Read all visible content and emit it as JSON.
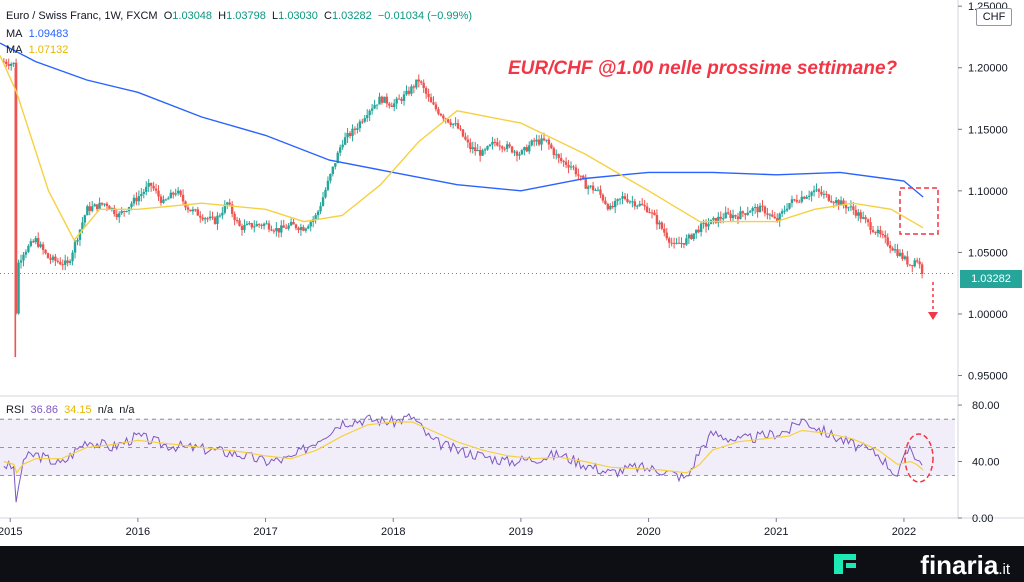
{
  "header": {
    "symbol": "Euro / Swiss Franc, 1W, FXCM",
    "o_label": "O",
    "o_value": "1.03048",
    "h_label": "H",
    "h_value": "1.03798",
    "l_label": "L",
    "l_value": "1.03030",
    "c_label": "C",
    "c_value": "1.03282",
    "change": "−0.01034 (−0.99%)",
    "ma1_label": "MA",
    "ma1_value": "1.09483",
    "ma2_label": "MA",
    "ma2_value": "1.07132",
    "currency": "CHF"
  },
  "annotation": "EUR/CHF @1.00 nelle prossime settimane?",
  "last_price_label": "1.03282",
  "rsi_legend": {
    "label": "RSI",
    "value1": "36.86",
    "value2": "34.15",
    "na1": "n/a",
    "na2": "n/a"
  },
  "brand": {
    "name": "finaria",
    "tld": ".it"
  },
  "colors": {
    "up": "#26a69a",
    "down": "#ef5350",
    "ma1": "#2962ff",
    "ma2": "#f5d142",
    "rsi": "#7e57c2",
    "rsi_ma": "#f5d142",
    "annotation": "#f23645"
  },
  "chart_data": {
    "type": "candlestick",
    "price_axis": {
      "ylim": [
        0.935,
        1.255
      ],
      "ticks": [
        "1.25000",
        "1.20000",
        "1.15000",
        "1.10000",
        "1.05000",
        "1.00000",
        "0.95000"
      ],
      "tick_values": [
        1.25,
        1.2,
        1.15,
        1.1,
        1.05,
        1.0,
        0.95
      ]
    },
    "x_axis": {
      "range": [
        2014.92,
        2022.4
      ],
      "ticks": [
        "2015",
        "2016",
        "2017",
        "2018",
        "2019",
        "2020",
        "2021",
        "2022"
      ],
      "tick_values": [
        2015,
        2016,
        2017,
        2018,
        2019,
        2020,
        2021,
        2022
      ]
    },
    "close_series": {
      "name": "EUR/CHF",
      "x": [
        2014.95,
        2015.03,
        2015.04,
        2015.06,
        2015.1,
        2015.2,
        2015.3,
        2015.45,
        2015.6,
        2015.75,
        2015.85,
        2016.0,
        2016.1,
        2016.2,
        2016.3,
        2016.4,
        2016.5,
        2016.6,
        2016.7,
        2016.8,
        2016.9,
        2017.0,
        2017.1,
        2017.2,
        2017.3,
        2017.4,
        2017.5,
        2017.6,
        2017.7,
        2017.8,
        2017.9,
        2018.0,
        2018.1,
        2018.2,
        2018.3,
        2018.4,
        2018.5,
        2018.6,
        2018.7,
        2018.8,
        2018.9,
        2019.0,
        2019.1,
        2019.2,
        2019.3,
        2019.4,
        2019.5,
        2019.6,
        2019.7,
        2019.8,
        2019.9,
        2020.0,
        2020.1,
        2020.2,
        2020.3,
        2020.4,
        2020.5,
        2020.6,
        2020.7,
        2020.8,
        2020.9,
        2021.0,
        2021.1,
        2021.2,
        2021.3,
        2021.4,
        2021.5,
        2021.6,
        2021.7,
        2021.8,
        2021.9,
        2022.0,
        2022.05,
        2022.1,
        2022.15
      ],
      "y": [
        1.205,
        1.203,
        0.985,
        1.04,
        1.05,
        1.06,
        1.045,
        1.04,
        1.085,
        1.09,
        1.08,
        1.095,
        1.105,
        1.09,
        1.1,
        1.085,
        1.08,
        1.075,
        1.09,
        1.07,
        1.072,
        1.073,
        1.068,
        1.072,
        1.07,
        1.08,
        1.11,
        1.14,
        1.15,
        1.165,
        1.175,
        1.17,
        1.178,
        1.19,
        1.17,
        1.16,
        1.152,
        1.135,
        1.13,
        1.14,
        1.135,
        1.13,
        1.14,
        1.14,
        1.125,
        1.12,
        1.105,
        1.1,
        1.085,
        1.095,
        1.09,
        1.085,
        1.07,
        1.055,
        1.06,
        1.07,
        1.075,
        1.08,
        1.08,
        1.085,
        1.085,
        1.075,
        1.09,
        1.095,
        1.1,
        1.095,
        1.09,
        1.085,
        1.075,
        1.065,
        1.055,
        1.045,
        1.04,
        1.045,
        1.033
      ]
    },
    "ma_series": [
      {
        "name": "MA",
        "x": [
          2014.92,
          2015.2,
          2015.6,
          2016.0,
          2016.5,
          2017.0,
          2017.5,
          2018.0,
          2018.5,
          2019.0,
          2019.5,
          2020.0,
          2020.5,
          2021.0,
          2021.5,
          2022.0,
          2022.15
        ],
        "y": [
          1.22,
          1.205,
          1.19,
          1.18,
          1.16,
          1.145,
          1.125,
          1.115,
          1.105,
          1.1,
          1.11,
          1.115,
          1.115,
          1.113,
          1.115,
          1.108,
          1.095
        ]
      },
      {
        "name": "MA",
        "x": [
          2014.92,
          2015.05,
          2015.3,
          2015.5,
          2015.7,
          2016.0,
          2016.5,
          2017.0,
          2017.3,
          2017.6,
          2017.9,
          2018.2,
          2018.5,
          2019.0,
          2019.5,
          2020.0,
          2020.4,
          2020.7,
          2021.0,
          2021.3,
          2021.6,
          2021.9,
          2022.15
        ],
        "y": [
          1.21,
          1.18,
          1.1,
          1.06,
          1.085,
          1.085,
          1.09,
          1.085,
          1.075,
          1.08,
          1.105,
          1.14,
          1.165,
          1.155,
          1.13,
          1.1,
          1.075,
          1.075,
          1.075,
          1.085,
          1.09,
          1.085,
          1.07
        ]
      }
    ],
    "rsi": {
      "ylim": [
        0,
        85
      ],
      "ticks": [
        "80.00",
        "40.00",
        "0.00"
      ],
      "tick_values": [
        80,
        40,
        0
      ],
      "band": [
        30,
        70
      ],
      "x": [
        2014.95,
        2015.03,
        2015.05,
        2015.1,
        2015.2,
        2015.4,
        2015.6,
        2015.8,
        2016.0,
        2016.2,
        2016.4,
        2016.6,
        2016.8,
        2017.0,
        2017.2,
        2017.4,
        2017.6,
        2017.8,
        2018.0,
        2018.15,
        2018.3,
        2018.5,
        2018.7,
        2018.9,
        2019.1,
        2019.3,
        2019.5,
        2019.7,
        2019.9,
        2020.1,
        2020.3,
        2020.4,
        2020.5,
        2020.7,
        2020.9,
        2021.1,
        2021.2,
        2021.4,
        2021.6,
        2021.8,
        2021.95,
        2022.05,
        2022.1,
        2022.15
      ],
      "y": [
        38,
        35,
        8,
        42,
        45,
        38,
        55,
        50,
        58,
        52,
        50,
        48,
        45,
        40,
        42,
        55,
        68,
        70,
        68,
        72,
        55,
        48,
        44,
        40,
        42,
        45,
        38,
        32,
        36,
        34,
        28,
        48,
        60,
        55,
        58,
        62,
        70,
        60,
        52,
        45,
        30,
        52,
        42,
        37
      ],
      "ma_y": [
        40,
        38,
        32,
        38,
        42,
        42,
        50,
        52,
        55,
        53,
        51,
        49,
        47,
        44,
        42,
        48,
        58,
        66,
        68,
        68,
        62,
        54,
        48,
        44,
        42,
        43,
        40,
        36,
        35,
        34,
        32,
        38,
        48,
        54,
        56,
        58,
        62,
        60,
        56,
        48,
        38,
        40,
        38,
        34
      ]
    }
  }
}
